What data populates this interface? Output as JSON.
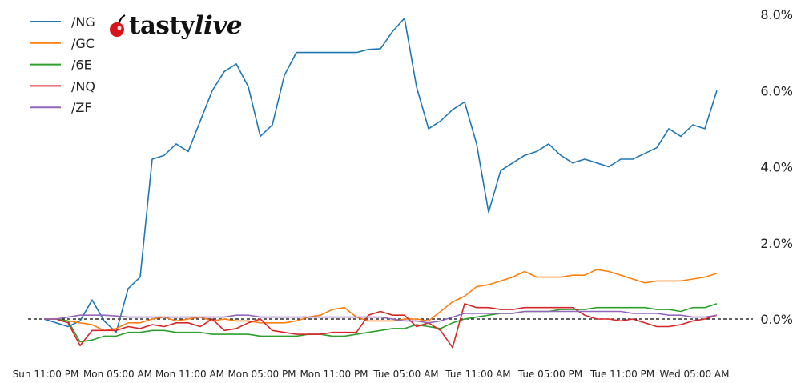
{
  "logo": {
    "brand": "tastylive",
    "brand_part1": "tasty",
    "brand_part2": "live"
  },
  "chart_data": {
    "type": "line",
    "title": "",
    "xlabel": "",
    "ylabel": "",
    "ylim": [
      -1.0,
      8.0
    ],
    "y_axis_side": "right",
    "y_ticks": [
      "0.0%",
      "2.0%",
      "4.0%",
      "6.0%",
      "8.0%"
    ],
    "y_tick_values": [
      0,
      2,
      4,
      6,
      8
    ],
    "x_ticks": [
      "Sun 11:00 PM",
      "Mon 05:00 AM",
      "Mon 11:00 AM",
      "Mon 05:00 PM",
      "Mon 11:00 PM",
      "Tue 05:00 AM",
      "Tue 11:00 AM",
      "Tue 05:00 PM",
      "Tue 11:00 PM",
      "Wed 05:00 AM"
    ],
    "x_tick_hours_from_start": [
      0,
      6,
      12,
      18,
      24,
      30,
      36,
      42,
      48,
      54
    ],
    "x_start": "Sun 11:00 PM",
    "x_step": "1 hour",
    "reference_line": {
      "value": 0,
      "style": "dashed",
      "color": "#000000"
    },
    "legend_position": "top-left",
    "grid": false,
    "series": [
      {
        "name": "/NG",
        "color": "#1f77b4",
        "values": [
          0,
          -0.1,
          -0.2,
          -0.05,
          0.5,
          -0.05,
          -0.35,
          0.8,
          1.1,
          4.2,
          4.3,
          4.6,
          4.4,
          5.2,
          6.0,
          6.5,
          6.7,
          6.1,
          4.8,
          5.1,
          6.4,
          7.0,
          7.0,
          7.0,
          7.0,
          7.0,
          7.0,
          7.08,
          7.1,
          7.55,
          7.9,
          6.1,
          5.0,
          5.2,
          5.5,
          5.7,
          4.6,
          2.8,
          3.9,
          4.1,
          4.3,
          4.4,
          4.6,
          4.3,
          4.1,
          4.2,
          4.1,
          4.0,
          4.2,
          4.2,
          4.35,
          4.5,
          5.0,
          4.8,
          5.1,
          5.0,
          6.0
        ]
      },
      {
        "name": "/GC",
        "color": "#ff7f0e",
        "values": [
          0,
          0,
          -0.05,
          -0.1,
          -0.15,
          -0.3,
          -0.25,
          -0.1,
          -0.1,
          0.0,
          0.05,
          -0.05,
          0.0,
          0.05,
          -0.05,
          0.0,
          -0.05,
          -0.05,
          -0.1,
          -0.1,
          -0.1,
          -0.05,
          0.05,
          0.1,
          0.25,
          0.3,
          0.05,
          -0.05,
          -0.05,
          -0.05,
          0.0,
          0.0,
          -0.05,
          0.2,
          0.45,
          0.6,
          0.85,
          0.9,
          1.0,
          1.1,
          1.25,
          1.1,
          1.1,
          1.1,
          1.15,
          1.15,
          1.3,
          1.25,
          1.15,
          1.05,
          0.95,
          1.0,
          1.0,
          1.0,
          1.05,
          1.1,
          1.2
        ]
      },
      {
        "name": "/6E",
        "color": "#2ca02c",
        "values": [
          0,
          0,
          -0.05,
          -0.6,
          -0.55,
          -0.45,
          -0.45,
          -0.35,
          -0.35,
          -0.3,
          -0.3,
          -0.35,
          -0.35,
          -0.35,
          -0.4,
          -0.4,
          -0.4,
          -0.4,
          -0.45,
          -0.45,
          -0.45,
          -0.45,
          -0.4,
          -0.4,
          -0.45,
          -0.45,
          -0.4,
          -0.35,
          -0.3,
          -0.25,
          -0.25,
          -0.15,
          -0.2,
          -0.25,
          -0.1,
          0.0,
          0.05,
          0.1,
          0.15,
          0.15,
          0.2,
          0.2,
          0.2,
          0.25,
          0.25,
          0.25,
          0.3,
          0.3,
          0.3,
          0.3,
          0.3,
          0.25,
          0.25,
          0.2,
          0.3,
          0.3,
          0.4
        ]
      },
      {
        "name": "/NQ",
        "color": "#d62728",
        "values": [
          0,
          0,
          -0.1,
          -0.7,
          -0.3,
          -0.3,
          -0.3,
          -0.2,
          -0.25,
          -0.15,
          -0.2,
          -0.1,
          -0.1,
          -0.2,
          0.0,
          -0.3,
          -0.25,
          -0.1,
          0.0,
          -0.3,
          -0.35,
          -0.4,
          -0.4,
          -0.4,
          -0.35,
          -0.35,
          -0.35,
          0.1,
          0.2,
          0.1,
          0.1,
          -0.2,
          -0.1,
          -0.3,
          -0.75,
          0.4,
          0.3,
          0.3,
          0.25,
          0.25,
          0.3,
          0.3,
          0.3,
          0.3,
          0.3,
          0.1,
          0.0,
          0.0,
          -0.05,
          0.0,
          -0.1,
          -0.2,
          -0.2,
          -0.15,
          -0.05,
          0.0,
          0.1
        ]
      },
      {
        "name": "/ZF",
        "color": "#9467bd",
        "values": [
          0,
          0,
          0.05,
          0.1,
          0.1,
          0.1,
          0.08,
          0.05,
          0.05,
          0.05,
          0.05,
          0.05,
          0.05,
          0.05,
          0.05,
          0.05,
          0.1,
          0.1,
          0.05,
          0.05,
          0.05,
          0.05,
          0.05,
          0.05,
          0.05,
          0.05,
          0.05,
          0.05,
          0.05,
          0.0,
          -0.05,
          -0.05,
          -0.1,
          -0.05,
          0.05,
          0.15,
          0.15,
          0.15,
          0.15,
          0.15,
          0.2,
          0.2,
          0.2,
          0.2,
          0.2,
          0.2,
          0.2,
          0.2,
          0.2,
          0.15,
          0.15,
          0.15,
          0.1,
          0.1,
          0.05,
          0.05,
          0.1
        ]
      }
    ]
  }
}
